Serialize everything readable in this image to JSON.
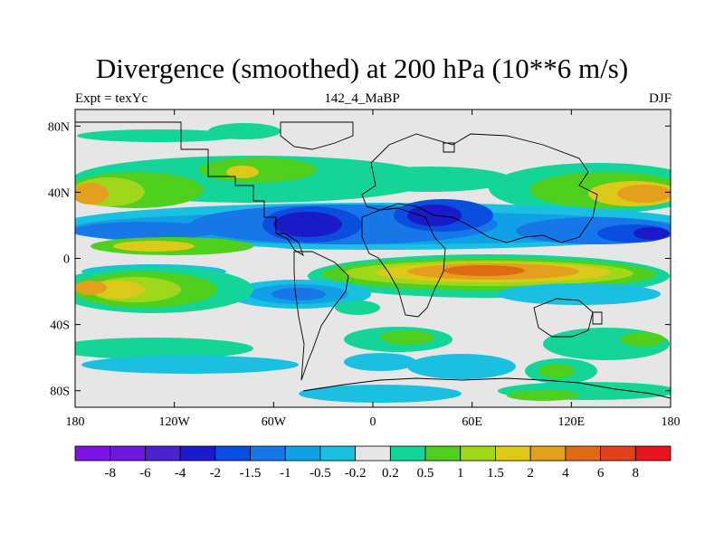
{
  "title": "Divergence (smoothed) at 200 hPa (10**6 m/s)",
  "left_label": "Expt = texYc",
  "center_label": "142_4_MaBP",
  "right_label": "DJF",
  "chart_data": {
    "type": "heatmap",
    "projection": "cylindrical-equidistant",
    "xlim": [
      -180,
      180
    ],
    "ylim": [
      -90,
      90
    ],
    "x_ticks": [
      {
        "value": -180,
        "label": "180"
      },
      {
        "value": -120,
        "label": "120W"
      },
      {
        "value": -60,
        "label": "60W"
      },
      {
        "value": 0,
        "label": "0"
      },
      {
        "value": 60,
        "label": "60E"
      },
      {
        "value": 120,
        "label": "120E"
      },
      {
        "value": 180,
        "label": "180"
      }
    ],
    "y_ticks": [
      {
        "value": 80,
        "label": "80N"
      },
      {
        "value": 40,
        "label": "40N"
      },
      {
        "value": 0,
        "label": "0"
      },
      {
        "value": -40,
        "label": "40S"
      },
      {
        "value": -80,
        "label": "80S"
      }
    ],
    "colorbar": {
      "levels": [
        "-8",
        "-6",
        "-4",
        "-2",
        "-1.5",
        "-1",
        "-0.5",
        "-0.2",
        "0.2",
        "0.5",
        "1",
        "1.5",
        "2",
        "4",
        "6",
        "8"
      ],
      "colors": [
        "#7a16e3",
        "#6a1ad8",
        "#4b22cf",
        "#1a1ac8",
        "#0a4ee0",
        "#1776e8",
        "#10a0e6",
        "#1ac0e0",
        "#e6e6e6",
        "#14d49a",
        "#4fcf1e",
        "#9fd81a",
        "#dcc91a",
        "#e3a01c",
        "#e06a14",
        "#e0421c",
        "#e8141c"
      ]
    },
    "features": [
      {
        "type": "band",
        "sign": "negative",
        "lat": 12,
        "lon_range": [
          -180,
          180
        ],
        "intensity": "-2 to -4"
      },
      {
        "type": "band",
        "sign": "positive",
        "lat": 0,
        "lon_range": [
          -60,
          180
        ],
        "intensity": "2 to 6"
      },
      {
        "type": "band",
        "sign": "positive",
        "lat": 40,
        "lon_range": [
          -180,
          180
        ],
        "intensity": "1 to 4"
      },
      {
        "type": "band",
        "sign": "positive",
        "lat": -25,
        "lon_range": [
          -180,
          -60
        ],
        "intensity": "1 to 4"
      }
    ]
  }
}
